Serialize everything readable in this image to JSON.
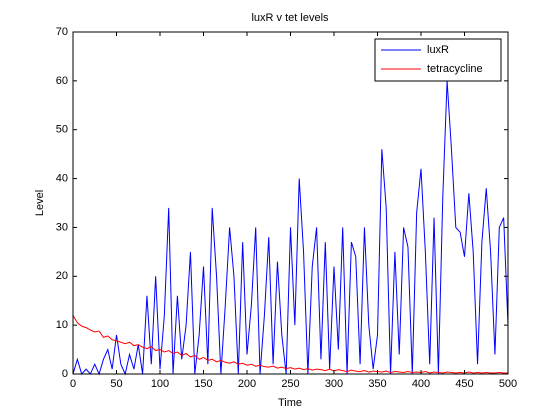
{
  "chart_data": {
    "type": "line",
    "title": "luxR v tet levels",
    "xlabel": "Time",
    "ylabel": "Level",
    "x": [
      0,
      5,
      10,
      15,
      20,
      25,
      30,
      35,
      40,
      45,
      50,
      55,
      60,
      65,
      70,
      75,
      80,
      85,
      90,
      95,
      100,
      105,
      110,
      115,
      120,
      125,
      130,
      135,
      140,
      145,
      150,
      155,
      160,
      165,
      170,
      175,
      180,
      185,
      190,
      195,
      200,
      205,
      210,
      215,
      220,
      225,
      230,
      235,
      240,
      245,
      250,
      255,
      260,
      265,
      270,
      275,
      280,
      285,
      290,
      295,
      300,
      305,
      310,
      315,
      320,
      325,
      330,
      335,
      340,
      345,
      350,
      355,
      360,
      365,
      370,
      375,
      380,
      385,
      390,
      395,
      400,
      405,
      410,
      415,
      420,
      425,
      430,
      435,
      440,
      445,
      450,
      455,
      460,
      465,
      470,
      475,
      480,
      485,
      490,
      495,
      500
    ],
    "series": [
      {
        "name": "luxR",
        "color": "#0000ff",
        "values": [
          0,
          3,
          0,
          1,
          0,
          2,
          0,
          3,
          5,
          1,
          8,
          2,
          0,
          4,
          1,
          6,
          0,
          16,
          2,
          20,
          1,
          12,
          34,
          0,
          16,
          3,
          10,
          25,
          0,
          8,
          22,
          2,
          34,
          20,
          0,
          14,
          30,
          20,
          0,
          27,
          4,
          14,
          30,
          0,
          12,
          28,
          2,
          23,
          8,
          0,
          30,
          10,
          40,
          25,
          0,
          22,
          30,
          3,
          27,
          1,
          22,
          5,
          30,
          0,
          27,
          24,
          2,
          30,
          10,
          1,
          8,
          46,
          34,
          0,
          25,
          4,
          30,
          26,
          0,
          33,
          42,
          25,
          2,
          32,
          0,
          36,
          60,
          46,
          30,
          29,
          24,
          37,
          25,
          2,
          27,
          38,
          25,
          4,
          30,
          32,
          10
        ]
      },
      {
        "name": "tetracycline",
        "color": "#ff0000",
        "values": [
          12,
          10.5,
          9.8,
          9.5,
          9,
          8.6,
          8.8,
          7.5,
          7.8,
          7,
          6.8,
          6.5,
          6.2,
          6.5,
          5.8,
          6,
          5.5,
          5.2,
          5.6,
          4.8,
          5,
          4.5,
          4.8,
          4.2,
          4.5,
          3.8,
          4.2,
          3.5,
          3.8,
          3,
          3.4,
          2.8,
          3,
          2.5,
          2.8,
          2.4,
          2.2,
          2.5,
          2,
          2.2,
          1.8,
          2,
          1.6,
          1.8,
          1.5,
          1.4,
          1.6,
          1.2,
          1.4,
          1.1,
          1.3,
          1,
          1.2,
          0.9,
          1.1,
          0.8,
          1,
          0.9,
          0.7,
          1,
          0.6,
          0.9,
          0.7,
          0.5,
          0.8,
          0.6,
          0.5,
          0.7,
          0.4,
          0.6,
          0.5,
          0.4,
          0.6,
          0.3,
          0.5,
          0.4,
          0.3,
          0.5,
          0.3,
          0.4,
          0.3,
          0.5,
          0.2,
          0.4,
          0.3,
          0.2,
          0.4,
          0.3,
          0.2,
          0.3,
          0.2,
          0.4,
          0.2,
          0.3,
          0.2,
          0.3,
          0.2,
          0.2,
          0.3,
          0.2,
          0.2
        ]
      }
    ],
    "xlim": [
      0,
      500
    ],
    "xticks": [
      0,
      50,
      100,
      150,
      200,
      250,
      300,
      350,
      400,
      450,
      500
    ],
    "ylim": [
      0,
      70
    ],
    "yticks": [
      0,
      10,
      20,
      30,
      40,
      50,
      60,
      70
    ],
    "legend": "upper right"
  }
}
